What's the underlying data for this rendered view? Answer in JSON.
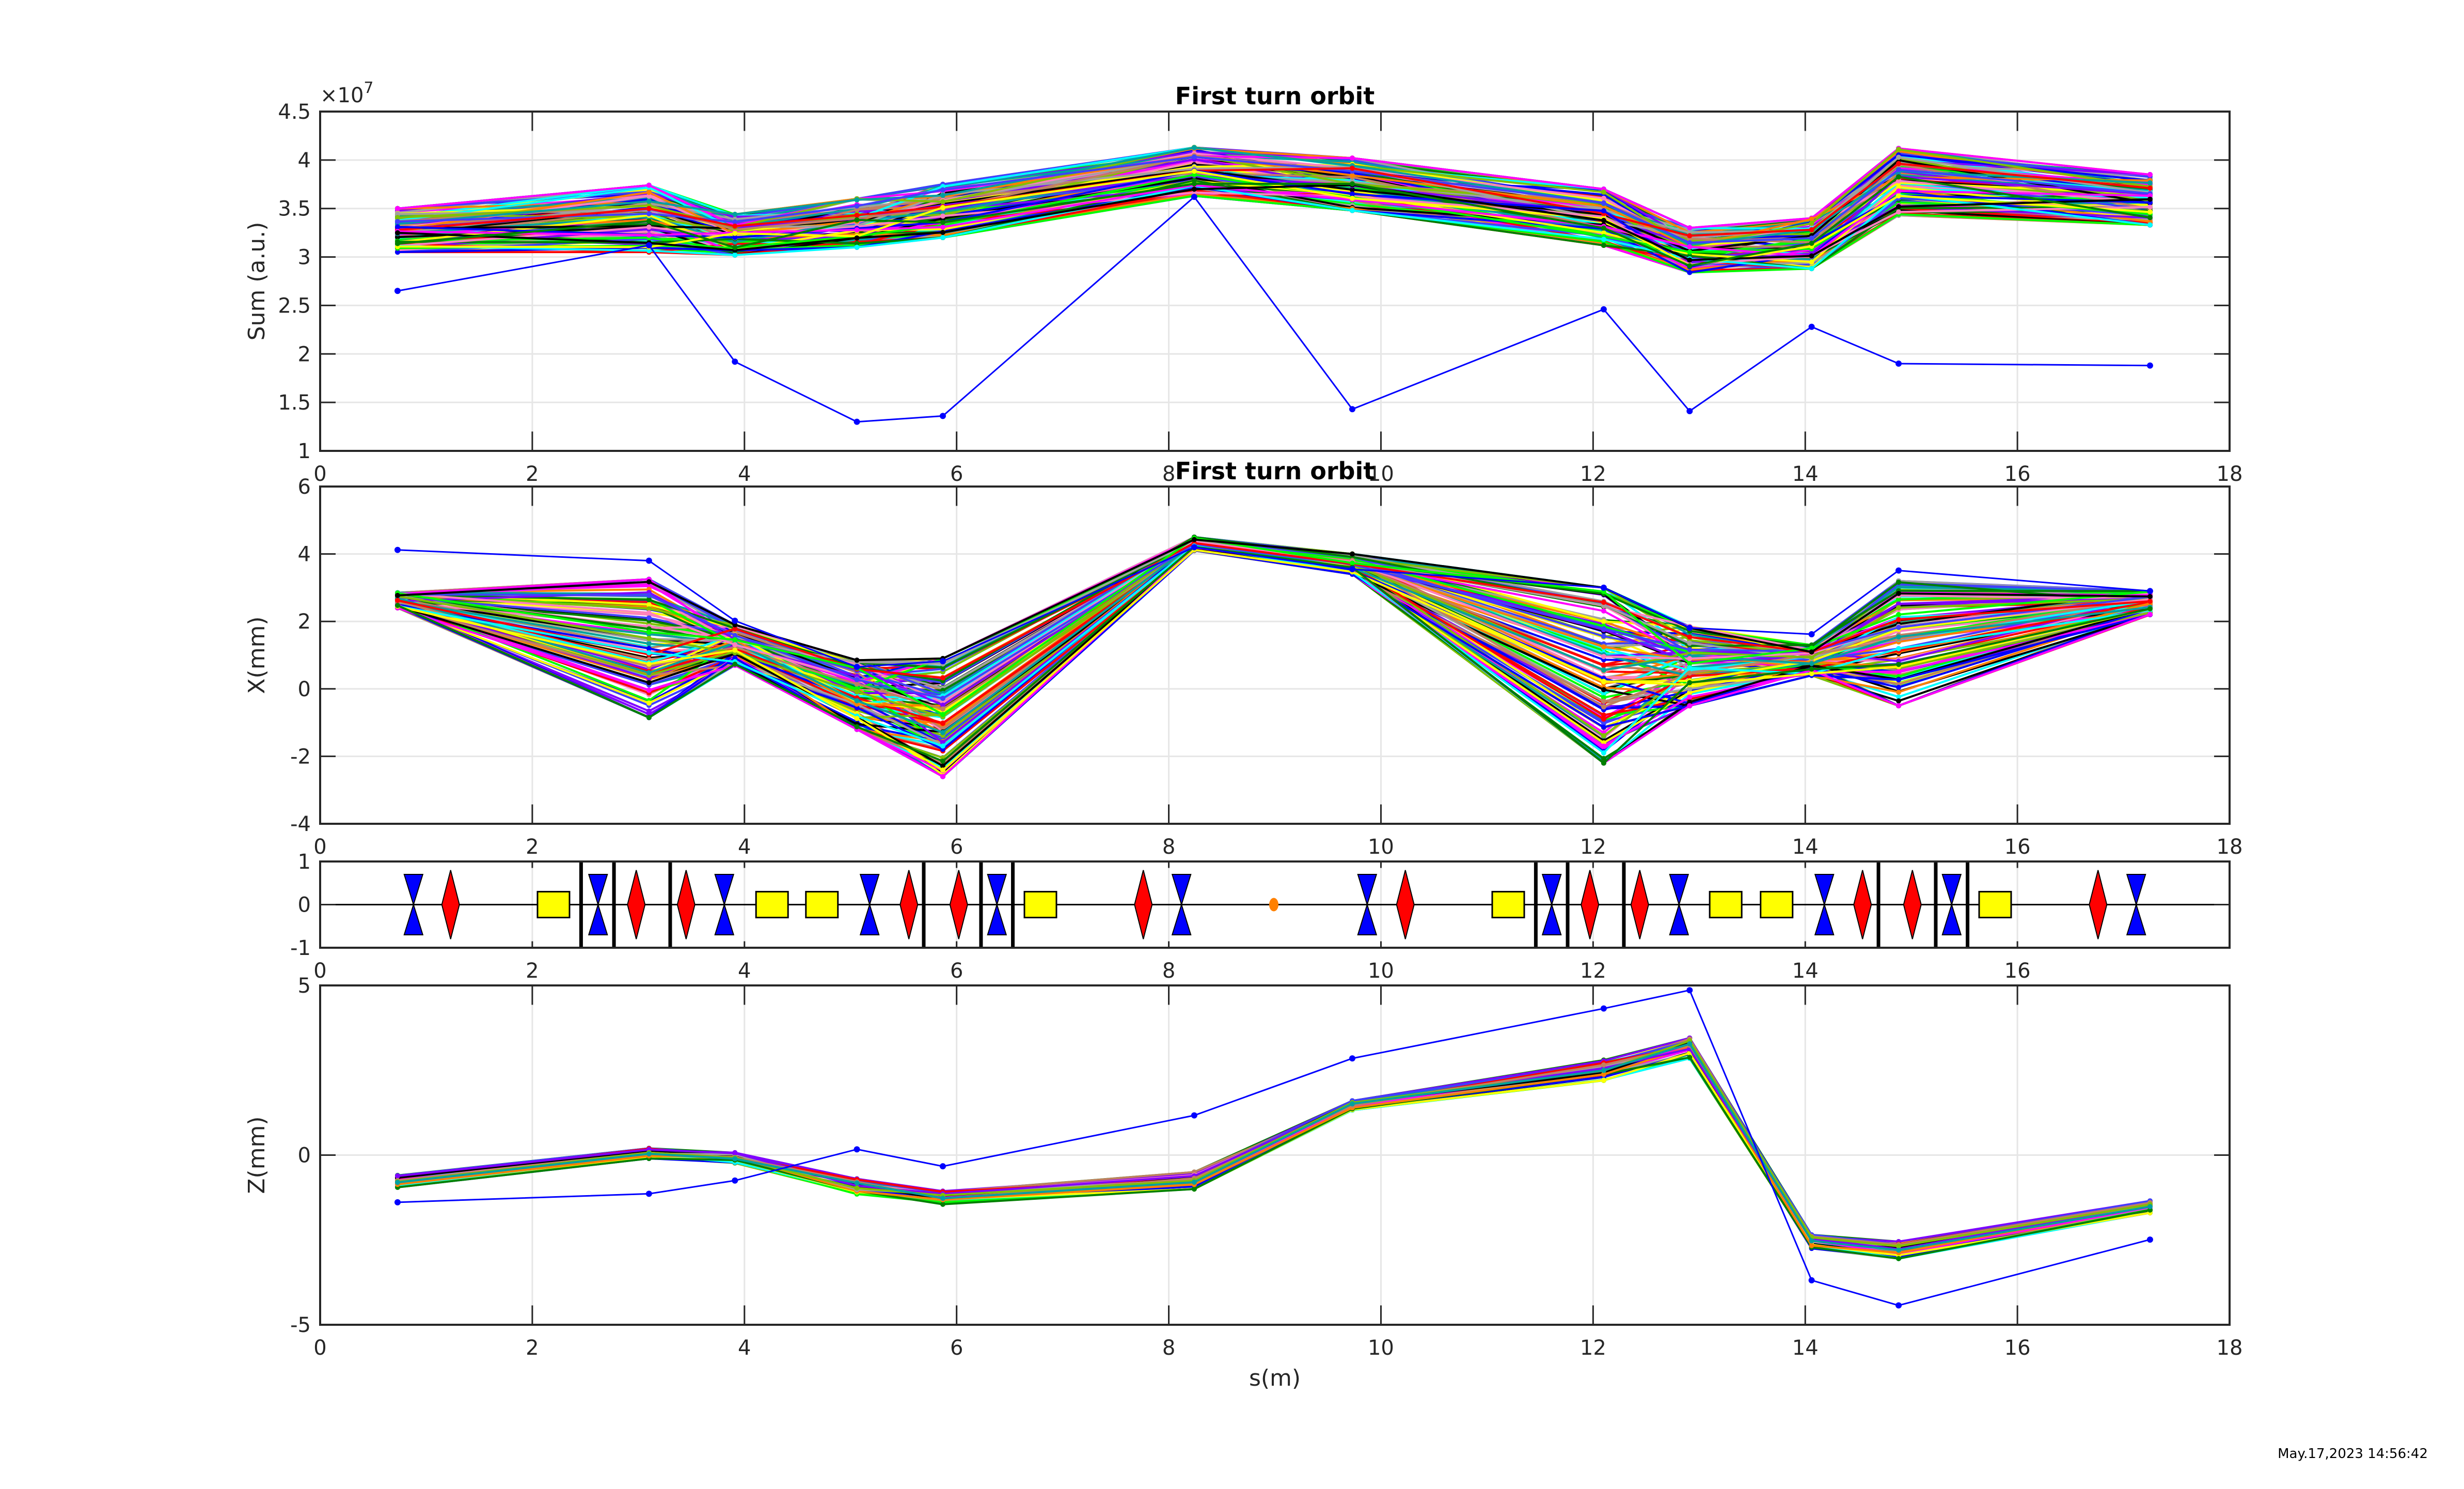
{
  "figure": {
    "timestamp": "May.17,2023 14:56:42"
  },
  "chart_data": [
    {
      "id": "sum",
      "type": "line",
      "title": "First turn orbit",
      "xlabel": "",
      "ylabel": "Sum (a.u.)",
      "exponent_label": "×10",
      "exponent_power": "7",
      "xlim": [
        0,
        18
      ],
      "ylim": [
        1.0,
        4.5
      ],
      "xticks": [
        0,
        2,
        4,
        6,
        8,
        10,
        12,
        14,
        16,
        18
      ],
      "yticks": [
        1,
        1.5,
        2,
        2.5,
        3,
        3.5,
        4,
        4.5
      ],
      "ytick_labels": [
        "1",
        "1.5",
        "2",
        "2.5",
        "3",
        "3.5",
        "4",
        "4.5"
      ],
      "grid": true,
      "x": [
        0.73,
        3.1,
        3.91,
        5.06,
        5.87,
        8.24,
        9.73,
        12.1,
        12.91,
        14.06,
        14.88,
        17.25
      ],
      "bundle": {
        "description": "~120 turns/shots, each a separate colored trace",
        "trace_count": 120,
        "low": [
          3.05,
          3.05,
          3.02,
          3.1,
          3.2,
          3.63,
          3.48,
          3.12,
          2.84,
          2.88,
          3.43,
          3.33
        ],
        "high": [
          3.5,
          3.74,
          3.44,
          3.6,
          3.75,
          4.13,
          4.02,
          3.7,
          3.3,
          3.4,
          4.12,
          3.85
        ]
      },
      "series": [
        {
          "name": "outlier",
          "color": "#0000ff",
          "values": [
            2.65,
            3.12,
            1.92,
            1.3,
            1.36,
            3.62,
            1.43,
            2.46,
            1.41,
            2.28,
            1.9,
            1.88
          ]
        }
      ]
    },
    {
      "id": "x",
      "type": "line",
      "title": "First turn orbit",
      "xlabel": "",
      "ylabel": "X(mm)",
      "xlim": [
        0,
        18
      ],
      "ylim": [
        -4,
        6
      ],
      "xticks": [
        0,
        2,
        4,
        6,
        8,
        10,
        12,
        14,
        16,
        18
      ],
      "yticks": [
        -4,
        -2,
        0,
        2,
        4,
        6
      ],
      "ytick_labels": [
        "-4",
        "-2",
        "0",
        "2",
        "4",
        "6"
      ],
      "grid": true,
      "x": [
        0.73,
        3.1,
        3.91,
        5.06,
        5.87,
        8.24,
        9.73,
        12.1,
        12.91,
        14.06,
        14.88,
        17.25
      ],
      "bundle": {
        "trace_count": 120,
        "low": [
          2.4,
          -0.85,
          0.7,
          -1.2,
          -2.6,
          4.1,
          3.4,
          -2.2,
          -0.5,
          0.4,
          -0.5,
          2.2
        ],
        "high": [
          2.85,
          3.25,
          1.9,
          0.85,
          0.9,
          4.5,
          4.0,
          3.0,
          1.85,
          1.3,
          3.2,
          2.9
        ]
      },
      "series": [
        {
          "name": "outlier",
          "color": "#0000ff",
          "values": [
            4.12,
            3.8,
            2.02,
            0.65,
            0.82,
            4.2,
            3.55,
            3.0,
            1.81,
            1.62,
            3.51,
            2.9
          ]
        }
      ]
    },
    {
      "id": "lattice",
      "type": "scatter",
      "title": "",
      "ylabel": "",
      "xlim": [
        0,
        18
      ],
      "ylim": [
        -1,
        1
      ],
      "xticks": [
        0,
        2,
        4,
        6,
        8,
        10,
        12,
        14,
        16,
        18
      ],
      "xtick_labels_shown": [
        "0",
        "2",
        "4",
        "6",
        "8",
        "10",
        "12",
        "14",
        "16"
      ],
      "yticks": [
        -1,
        0,
        1
      ],
      "ytick_labels": [
        "-1",
        "0",
        "1"
      ],
      "legend": {
        "focusing_quad": "blue hourglass",
        "defocusing_quad": "red diamond",
        "dipole": "yellow box",
        "corrector": "black vertical line",
        "marker": "orange dot"
      },
      "colors": {
        "quad_blue": "#0000ff",
        "quad_red": "#ff0000",
        "dipole": "#ffff00",
        "marker": "#ff8000",
        "corrector": "#000000"
      },
      "elements": [
        {
          "type": "qf",
          "s": 0.88
        },
        {
          "type": "qd",
          "s": 1.23
        },
        {
          "type": "bend",
          "s": 2.2
        },
        {
          "type": "corr",
          "s": 2.46
        },
        {
          "type": "qf",
          "s": 2.62
        },
        {
          "type": "corr",
          "s": 2.77
        },
        {
          "type": "qd",
          "s": 2.98
        },
        {
          "type": "corr",
          "s": 3.3
        },
        {
          "type": "qd",
          "s": 3.45
        },
        {
          "type": "qf",
          "s": 3.81
        },
        {
          "type": "bend",
          "s": 4.26
        },
        {
          "type": "bend",
          "s": 4.73
        },
        {
          "type": "qf",
          "s": 5.18
        },
        {
          "type": "qd",
          "s": 5.55
        },
        {
          "type": "corr",
          "s": 5.69
        },
        {
          "type": "qd",
          "s": 6.02
        },
        {
          "type": "corr",
          "s": 6.23
        },
        {
          "type": "qf",
          "s": 6.38
        },
        {
          "type": "corr",
          "s": 6.53
        },
        {
          "type": "bend",
          "s": 6.79
        },
        {
          "type": "qd",
          "s": 7.76
        },
        {
          "type": "qf",
          "s": 8.12
        },
        {
          "type": "marker",
          "s": 8.99
        },
        {
          "type": "qf",
          "s": 9.87
        },
        {
          "type": "qd",
          "s": 10.23
        },
        {
          "type": "bend",
          "s": 11.2
        },
        {
          "type": "corr",
          "s": 11.46
        },
        {
          "type": "qf",
          "s": 11.61
        },
        {
          "type": "corr",
          "s": 11.76
        },
        {
          "type": "qd",
          "s": 11.97
        },
        {
          "type": "corr",
          "s": 12.29
        },
        {
          "type": "qd",
          "s": 12.44
        },
        {
          "type": "qf",
          "s": 12.81
        },
        {
          "type": "bend",
          "s": 13.25
        },
        {
          "type": "bend",
          "s": 13.73
        },
        {
          "type": "qf",
          "s": 14.18
        },
        {
          "type": "qd",
          "s": 14.54
        },
        {
          "type": "corr",
          "s": 14.69
        },
        {
          "type": "qd",
          "s": 15.01
        },
        {
          "type": "corr",
          "s": 15.23
        },
        {
          "type": "qf",
          "s": 15.38
        },
        {
          "type": "corr",
          "s": 15.53
        },
        {
          "type": "bend",
          "s": 15.79
        },
        {
          "type": "qd",
          "s": 16.76
        },
        {
          "type": "qf",
          "s": 17.12
        }
      ]
    },
    {
      "id": "z",
      "type": "line",
      "title": "",
      "xlabel": "s(m)",
      "ylabel": "Z(mm)",
      "xlim": [
        0,
        18
      ],
      "ylim": [
        -5,
        5
      ],
      "xticks": [
        0,
        2,
        4,
        6,
        8,
        10,
        12,
        14,
        16,
        18
      ],
      "yticks": [
        -5,
        0,
        5
      ],
      "ytick_labels": [
        "-5",
        "0",
        "5"
      ],
      "grid": true,
      "x": [
        0.73,
        3.1,
        3.91,
        5.06,
        5.87,
        8.24,
        9.73,
        12.1,
        12.91,
        14.06,
        14.88,
        17.25
      ],
      "bundle": {
        "trace_count": 30,
        "low": [
          -0.95,
          -0.1,
          -0.25,
          -1.15,
          -1.45,
          -1.0,
          1.3,
          2.2,
          2.85,
          -2.75,
          -3.05,
          -1.7
        ],
        "high": [
          -0.6,
          0.2,
          0.1,
          -0.7,
          -1.05,
          -0.5,
          1.6,
          2.8,
          3.45,
          -2.35,
          -2.55,
          -1.35
        ]
      },
      "series": [
        {
          "name": "outlier",
          "color": "#0000ff",
          "values": [
            -1.39,
            -1.14,
            -0.75,
            0.17,
            -0.33,
            1.17,
            2.85,
            4.32,
            4.86,
            -3.69,
            -4.43,
            -2.49
          ]
        }
      ]
    }
  ],
  "palette": [
    "#ff0000",
    "#00ff00",
    "#0000ff",
    "#00ffff",
    "#ff00ff",
    "#ffff00",
    "#000000",
    "#008000",
    "#ff8000",
    "#a0a0a0",
    "#8000ff",
    "#c08060",
    "#80c000",
    "#00a0a0",
    "#ff80c0",
    "#4040ff"
  ]
}
